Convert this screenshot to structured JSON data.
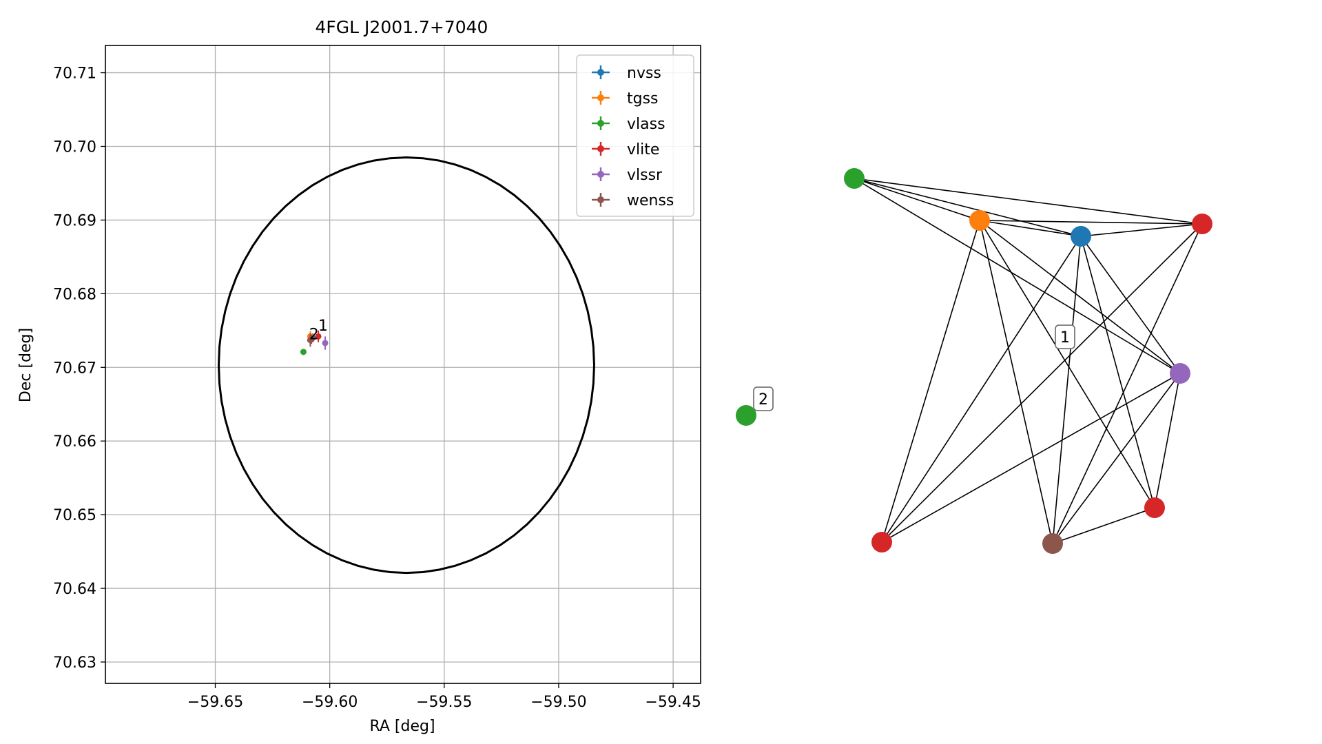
{
  "chart_data": [
    {
      "type": "scatter",
      "title": "4FGL J2001.7+7040",
      "xlabel": "RA [deg]",
      "ylabel": "Dec [deg]",
      "xlim": [
        -59.698,
        -59.438
      ],
      "ylim": [
        70.6271,
        70.7137
      ],
      "xticks": [
        -59.65,
        -59.6,
        -59.55,
        -59.5,
        -59.45
      ],
      "xtick_labels": [
        "−59.65",
        "−59.60",
        "−59.55",
        "−59.50",
        "−59.45"
      ],
      "yticks": [
        70.63,
        70.64,
        70.65,
        70.66,
        70.67,
        70.68,
        70.69,
        70.7,
        70.71
      ],
      "ytick_labels": [
        "70.63",
        "70.64",
        "70.65",
        "70.66",
        "70.67",
        "70.68",
        "70.69",
        "70.70",
        "70.71"
      ],
      "grid": true,
      "legend_position": "top-right",
      "series": [
        {
          "name": "nvss",
          "color": "#1f77b4",
          "points": [
            {
              "ra": -59.6075,
              "dec": 70.674,
              "err_ra": 0.0012,
              "err_dec": 0.0006
            }
          ]
        },
        {
          "name": "tgss",
          "color": "#ff7f0e",
          "points": [
            {
              "ra": -59.6085,
              "dec": 70.6742,
              "err_ra": 0.0014,
              "err_dec": 0.0007
            }
          ]
        },
        {
          "name": "vlass",
          "color": "#2ca02c",
          "points": [
            {
              "ra": -59.6115,
              "dec": 70.6721,
              "err_ra": 0.0003,
              "err_dec": 0.0002
            }
          ]
        },
        {
          "name": "vlite",
          "color": "#d62728",
          "points": [
            {
              "ra": -59.605,
              "dec": 70.6742,
              "err_ra": 0.0012,
              "err_dec": 0.0008
            },
            {
              "ra": -59.608,
              "dec": 70.6738,
              "err_ra": 0.001,
              "err_dec": 0.0006
            }
          ]
        },
        {
          "name": "vlssr",
          "color": "#9467bd",
          "points": [
            {
              "ra": -59.602,
              "dec": 70.6733,
              "err_ra": 0.0009,
              "err_dec": 0.0009
            }
          ]
        },
        {
          "name": "wenss",
          "color": "#8c564b",
          "points": [
            {
              "ra": -59.6085,
              "dec": 70.6737,
              "err_ra": 0.0014,
              "err_dec": 0.0009
            }
          ]
        }
      ],
      "ellipse": {
        "center_ra": -59.5665,
        "center_dec": 70.6703,
        "semi_ra": 0.082,
        "semi_dec": 0.0282,
        "color": "#000000"
      },
      "annotations": [
        {
          "text": "1",
          "ra": -59.605,
          "dec": 70.675
        },
        {
          "text": "2",
          "ra": -59.609,
          "dec": 70.6738
        }
      ]
    },
    {
      "type": "network",
      "nodes": [
        {
          "color": "#2ca02c"
        },
        {
          "color": "#ff7f0e"
        },
        {
          "color": "#1f77b4"
        },
        {
          "color": "#d62728"
        },
        {
          "color": "#9467bd"
        },
        {
          "color": "#d62728"
        },
        {
          "color": "#8c564b"
        },
        {
          "color": "#d62728"
        },
        {
          "color": "#2ca02c"
        }
      ],
      "edges": [
        [
          0,
          1
        ],
        [
          0,
          2
        ],
        [
          0,
          3
        ],
        [
          0,
          4
        ],
        [
          1,
          2
        ],
        [
          1,
          3
        ],
        [
          1,
          4
        ],
        [
          1,
          5
        ],
        [
          1,
          6
        ],
        [
          1,
          7
        ],
        [
          2,
          3
        ],
        [
          2,
          4
        ],
        [
          2,
          5
        ],
        [
          2,
          6
        ],
        [
          2,
          7
        ],
        [
          3,
          6
        ],
        [
          3,
          7
        ],
        [
          4,
          5
        ],
        [
          4,
          6
        ],
        [
          4,
          7
        ],
        [
          5,
          6
        ]
      ],
      "labels": [
        {
          "text": "1",
          "component": 1
        },
        {
          "text": "2",
          "component": 2
        }
      ]
    }
  ]
}
